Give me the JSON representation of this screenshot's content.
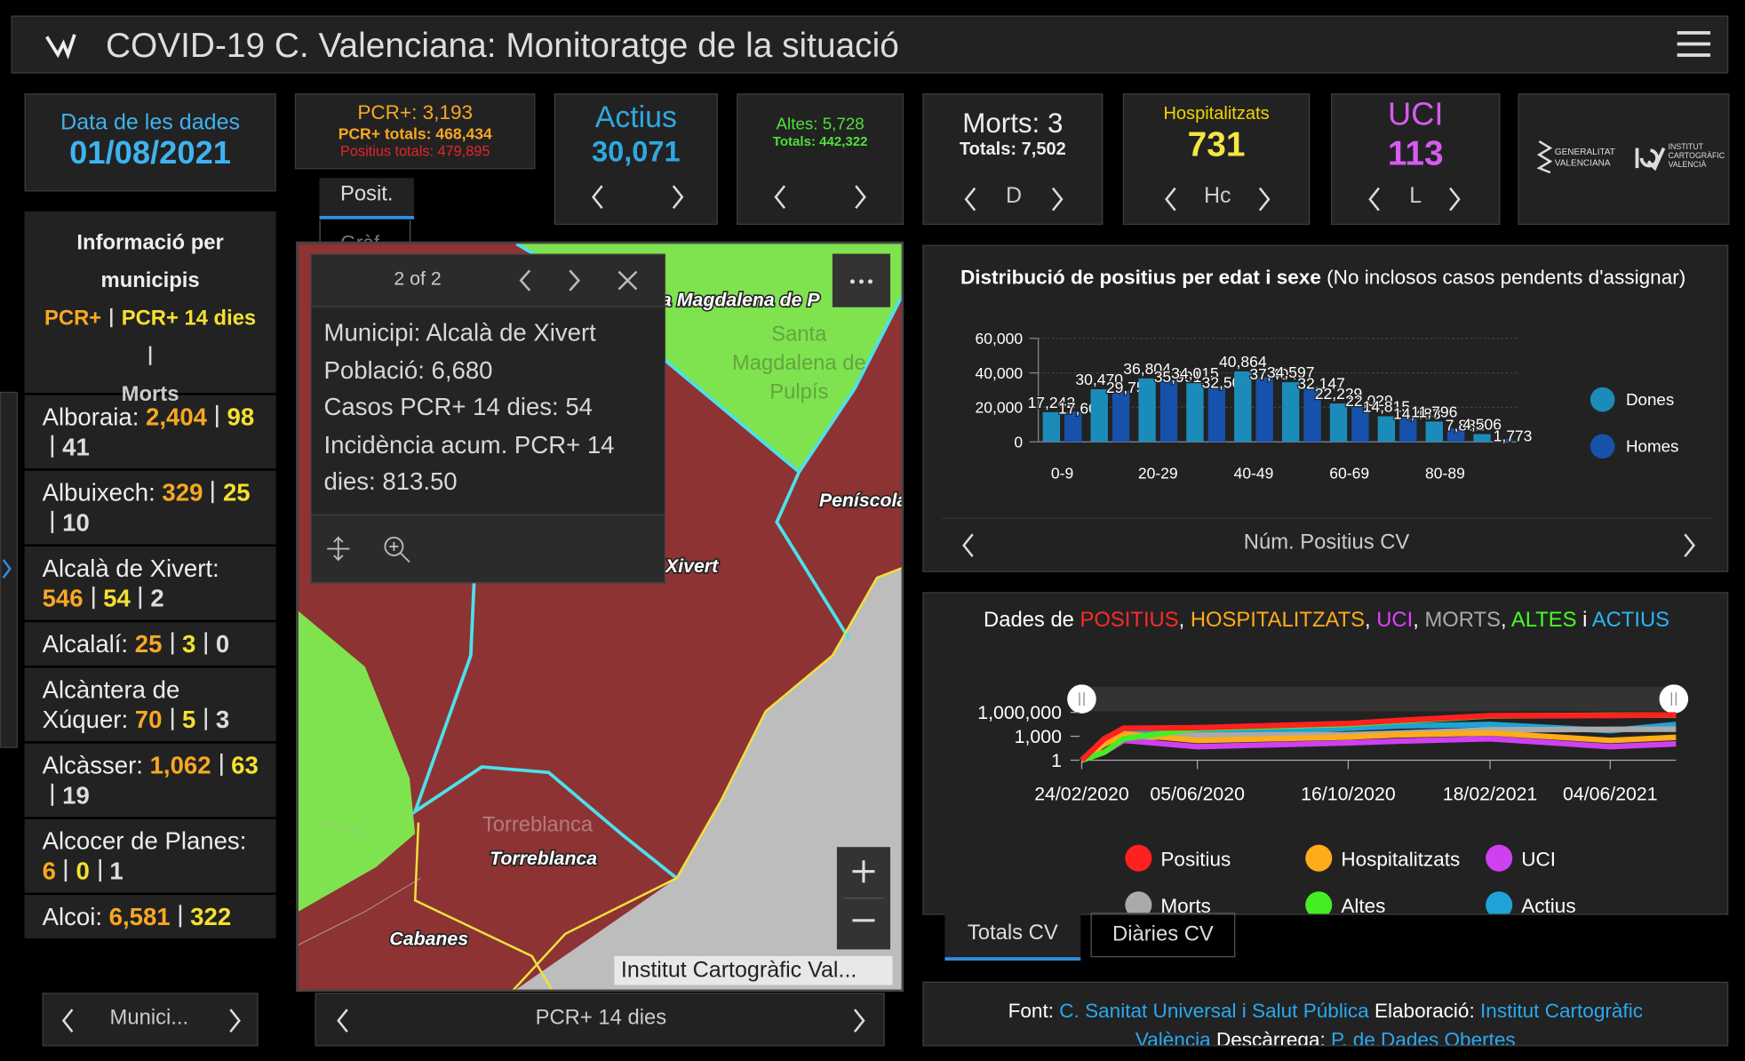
{
  "header": {
    "title": "COVID-19 C. Valenciana: Monitoratge de la situació"
  },
  "date_box": {
    "label": "Data de les dades",
    "value": "01/08/2021"
  },
  "kpis": {
    "pcr": {
      "line1": "PCR+: 3,193",
      "line2": "PCR+ totals: 468,434",
      "line3": "Positius totals: 479,895",
      "tab": "Posit.",
      "tab2": "Gràf"
    },
    "actius": {
      "label": "Actius",
      "value": "30,071"
    },
    "altes": {
      "line1": "Altes: 5,728",
      "line2": "Totals: 442,322"
    },
    "morts": {
      "line1": "Morts: 3",
      "line2": "Totals: 7,502",
      "pager": "D"
    },
    "hosp": {
      "label": "Hospitalitzats",
      "value": "731",
      "pager": "Hc"
    },
    "uci": {
      "label": "UCI",
      "value": "113",
      "pager": "L"
    }
  },
  "logos": {
    "gva": [
      "GENERALITAT",
      "VALENCIANA"
    ],
    "icv": [
      "INSTITUT",
      "CARTOGRÀFIC",
      "VALENCIÀ"
    ]
  },
  "municipis": {
    "title": "Informació per municipis",
    "legend": [
      "PCR+",
      "PCR+ 14 dies",
      "Morts"
    ],
    "items": [
      {
        "name": "Alboraia:",
        "pcr": "2,404",
        "pcr14": "98",
        "morts": "41"
      },
      {
        "name": "Albuixech:",
        "pcr": "329",
        "pcr14": "25",
        "morts": "10"
      },
      {
        "name": "Alcalà de Xivert:",
        "pcr": "546",
        "pcr14": "54",
        "morts": "2"
      },
      {
        "name": "Alcalalí:",
        "pcr": "25",
        "pcr14": "3",
        "morts": "0"
      },
      {
        "name": "Alcàntera de Xúquer:",
        "pcr": "70",
        "pcr14": "5",
        "morts": "3"
      },
      {
        "name": "Alcàsser:",
        "pcr": "1,062",
        "pcr14": "63",
        "morts": "19"
      },
      {
        "name": "Alcocer de Planes:",
        "pcr": "6",
        "pcr14": "0",
        "morts": "1"
      },
      {
        "name": "Alcoi:",
        "pcr": "6,581",
        "pcr14": "322"
      }
    ],
    "footer": "Munici..."
  },
  "map": {
    "popup": {
      "pager": "2 of 2",
      "lines": [
        "Municipi: Alcalà de Xivert",
        "Població: 6,680",
        "Casos PCR+ 14 dies: 54",
        "Incidència acum. PCR+ 14 dies: 813.50"
      ]
    },
    "labels": {
      "magdalena": "a Magdalena de P",
      "santa": [
        "Santa",
        "Magdalena de",
        "Pulpís"
      ],
      "peniscola": "Peníscola",
      "xivert": "Xivert",
      "torreblanca_faint": "Torreblanca",
      "torreblanca": "Torreblanca",
      "cabanes": "Cabanes"
    },
    "attribution": "Institut Cartogràfic Val...",
    "footer": "PCR+ 14 dies"
  },
  "chart_data": [
    {
      "type": "bar",
      "title": "Distribució de positius per edat i sexe",
      "subtitle": "(No inclosos casos pendents d'assignar)",
      "categories": [
        "0-9",
        null,
        "20-29",
        null,
        "40-49",
        null,
        "60-69",
        null,
        "80-89",
        null
      ],
      "series": [
        {
          "name": "Dones",
          "color": "#1b8cba",
          "values": [
            17242,
            30470,
            36804,
            34015,
            40864,
            34597,
            22229,
            14815,
            11796,
            4506
          ],
          "value_labels": [
            "17,242",
            "30,470",
            "36,804",
            "34,015",
            "40,864",
            "34,597",
            "22,229",
            "14,815",
            "11,796",
            "4,506"
          ]
        },
        {
          "name": "Homes",
          "color": "#1652ab",
          "values": [
            17600,
            29755,
            35901,
            32502,
            37404,
            32147,
            22029,
            14483,
            7882,
            1773
          ],
          "value_labels": [
            "17,600",
            "29,755",
            "35,901",
            "32,502",
            "37,404",
            "32,147",
            "22,029",
            "14,483",
            "7,882",
            "1,773"
          ]
        }
      ],
      "ylim": [
        0,
        60000
      ],
      "yticks": [
        0,
        {
          "value": 20000,
          "label": "20,000"
        },
        {
          "value": 40000,
          "label": "40,000"
        },
        {
          "value": 60000,
          "label": "60,000"
        }
      ],
      "grid": true,
      "legend": "right",
      "footer": "Núm. Positius CV"
    },
    {
      "type": "line",
      "title_parts": [
        "Dades de",
        "POSITIUS",
        ",",
        "HOSPITALITZATS",
        ",",
        "UCI",
        ",",
        "MORTS",
        ",",
        "ALTES",
        "i",
        "ACTIUS"
      ],
      "title_colors": [
        "#ffffff",
        "#ff2a2a",
        "#ffffff",
        "#ffab1a",
        "#ffffff",
        "#e040fb",
        "#ffffff",
        "#aaaaaa",
        "#ffffff",
        "#44ff22",
        "#ffffff",
        "#29b6f6"
      ],
      "x": [
        "24/02/2020",
        "15/03/2020",
        "01/04/2020",
        "05/06/2020",
        "16/10/2020",
        "01/12/2020",
        "18/02/2021",
        "04/06/2021",
        "01/08/2021"
      ],
      "series": [
        {
          "name": "Actius",
          "color": "#1fa3d6",
          "values": [
            1,
            500,
            9000,
            2000,
            10000,
            20000,
            30000,
            5000,
            30071
          ]
        },
        {
          "name": "Morts",
          "color": "#aaaaaa",
          "values": [
            1,
            10,
            500,
            1400,
            1600,
            2500,
            6500,
            7400,
            7502
          ]
        },
        {
          "name": "UCI",
          "color": "#d040f0",
          "values": [
            1,
            10,
            300,
            50,
            150,
            250,
            500,
            50,
            113
          ]
        },
        {
          "name": "Hospitalitzats",
          "color": "#ffab1a",
          "values": [
            1,
            100,
            2000,
            300,
            800,
            1500,
            2500,
            300,
            731
          ]
        },
        {
          "name": "Altes",
          "color": "#44ee22",
          "values": [
            1,
            10,
            500,
            9000,
            30000,
            80000,
            350000,
            430000,
            442322
          ]
        },
        {
          "name": "Positius",
          "color": "#ff2020",
          "values": [
            1,
            500,
            10000,
            12000,
            40000,
            100000,
            380000,
            400000,
            479895
          ]
        }
      ],
      "legend_order": [
        5,
        3,
        2,
        1,
        4,
        0
      ],
      "xlim": [
        "24/02/2020",
        "01/08/2021"
      ],
      "xticks": [
        "24/02/2020",
        "05/06/2020",
        "16/10/2020",
        "18/02/2021",
        "04/06/2021"
      ],
      "ylim": [
        1,
        1000000
      ],
      "yticks": [
        1,
        {
          "value": 1000,
          "label": "1,000"
        },
        {
          "value": 1000000,
          "label": "1,000,000"
        }
      ],
      "log_y": true,
      "legend": "bottom",
      "tabs": [
        "Totals CV",
        "Diàries CV"
      ]
    }
  ],
  "footer": {
    "parts": [
      "Font:",
      "C. Sanitat Universal i Salut Pública",
      "Elaboració:",
      "Institut Cartogràfic València",
      "Descàrrega:",
      "P. de Dades Obertes"
    ]
  }
}
